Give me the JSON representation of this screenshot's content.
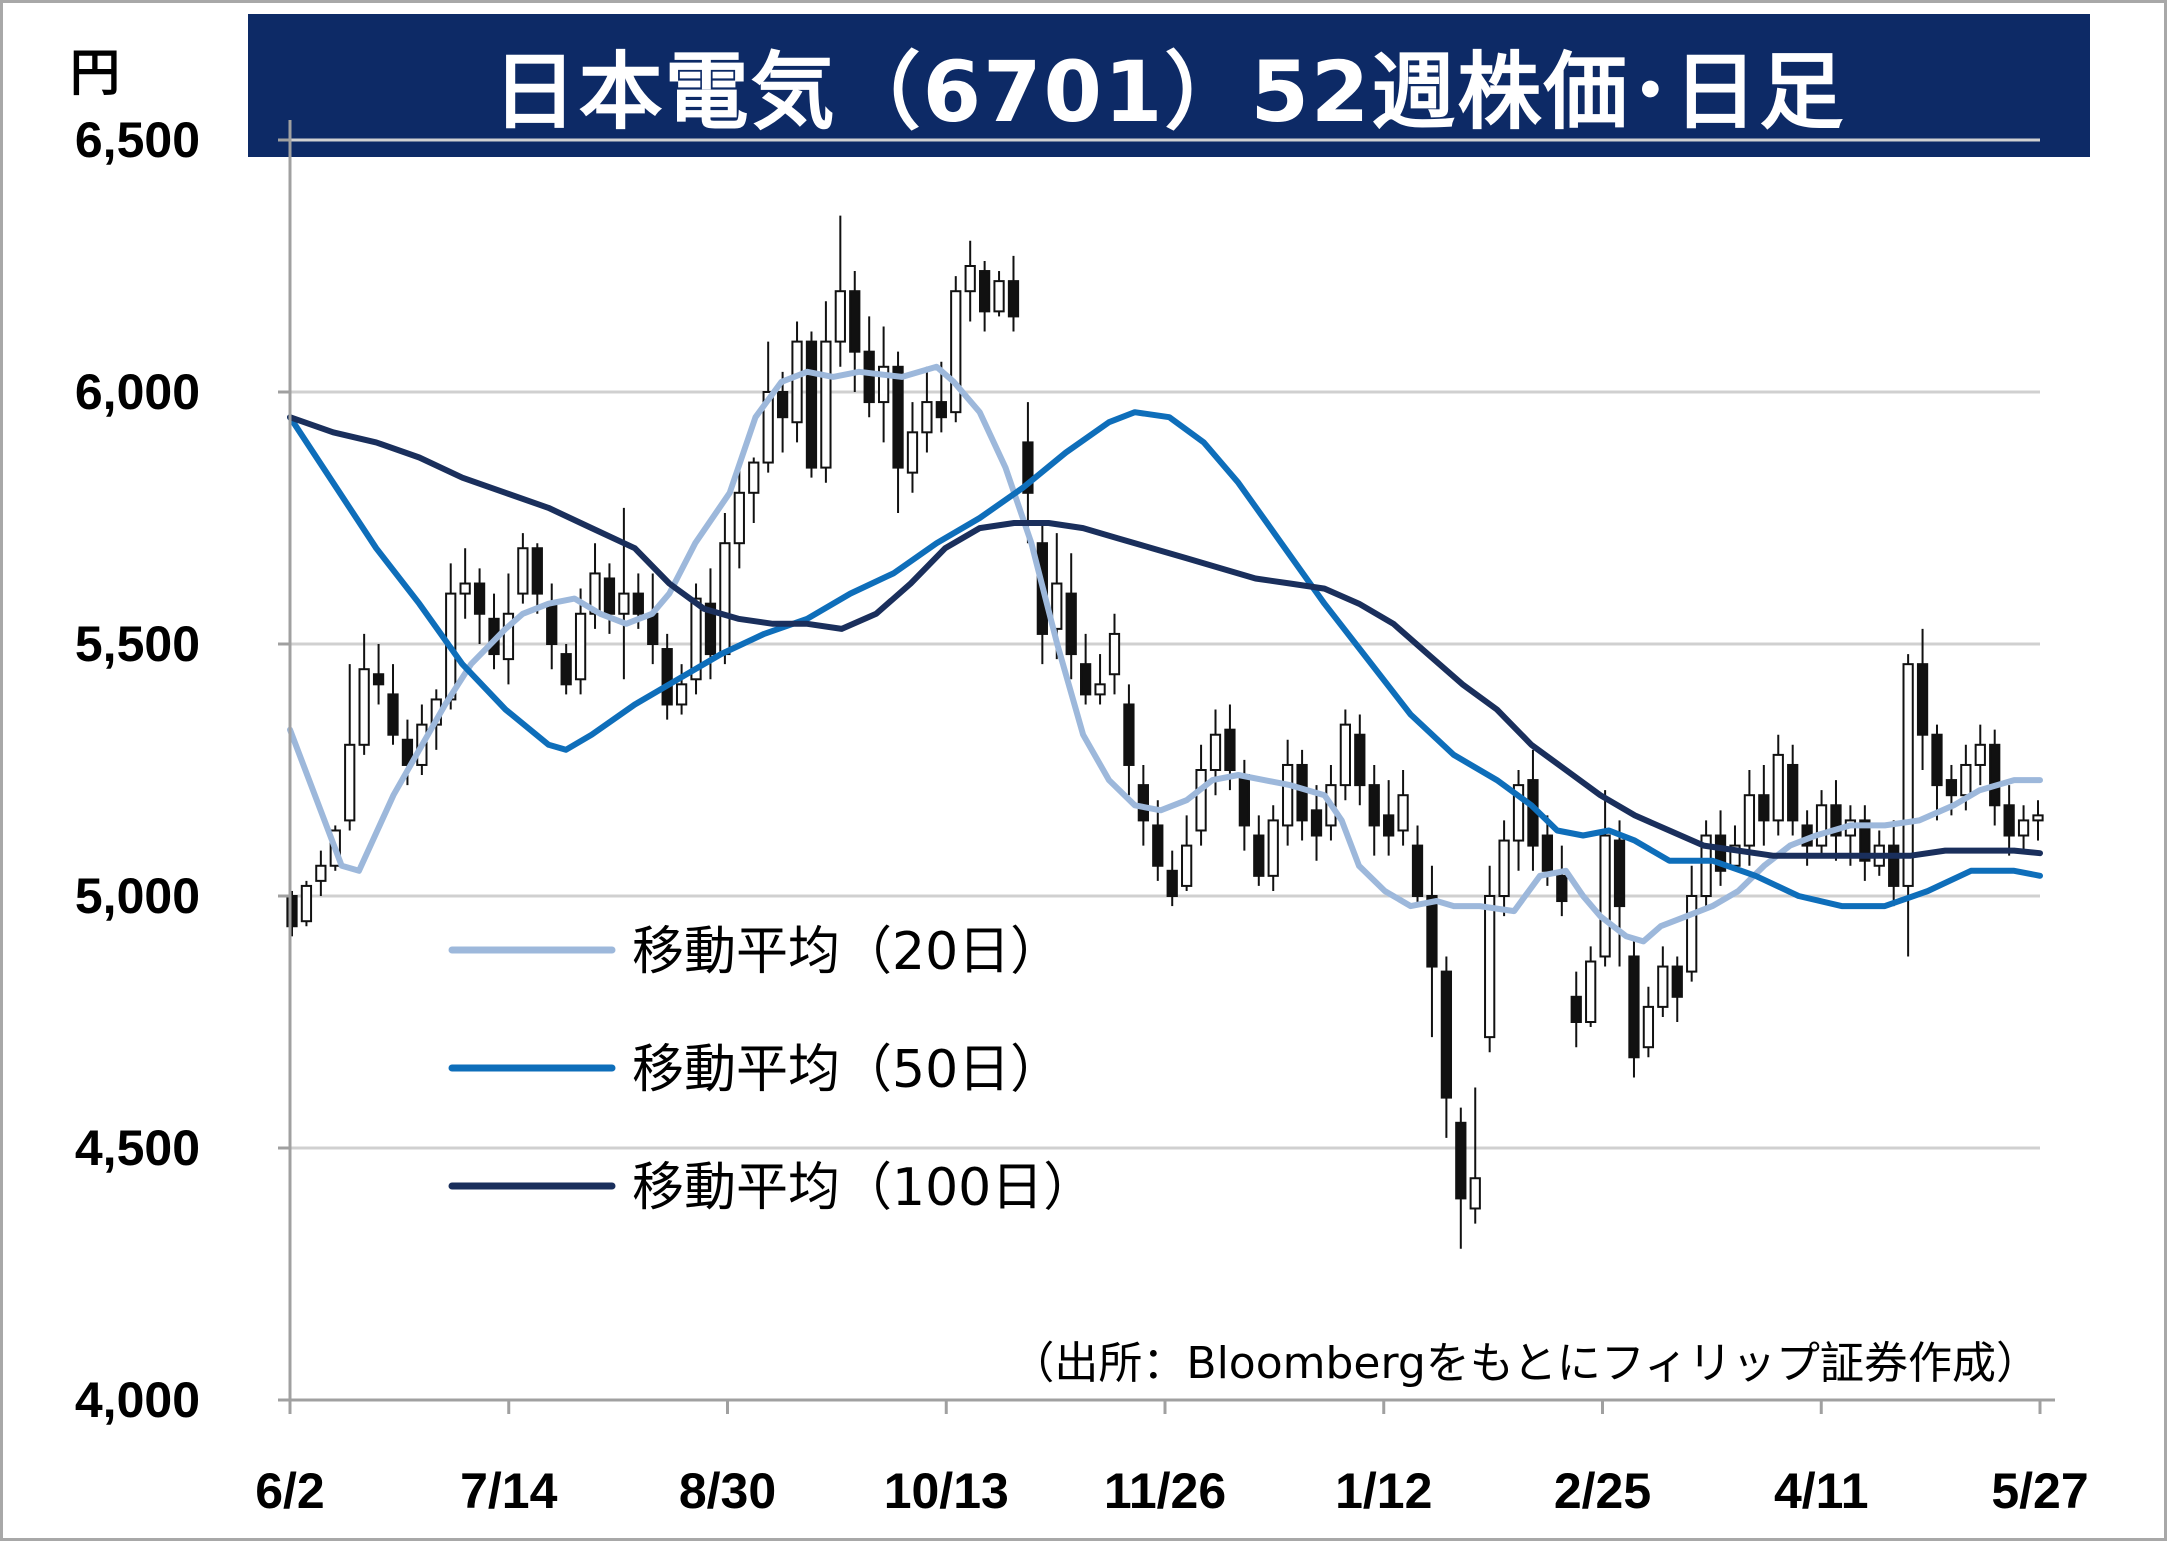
{
  "chart_data": {
    "type": "candlestick",
    "title": "日本電気（6701）52週株価･日足",
    "ylabel": "円",
    "ylim": [
      4000,
      6500
    ],
    "y_ticks": [
      "6,500",
      "6,000",
      "5,500",
      "5,000",
      "4,500",
      "4,000"
    ],
    "y_tick_values": [
      6500,
      6000,
      5500,
      5000,
      4500,
      4000
    ],
    "x_ticks": [
      "6/2",
      "7/14",
      "8/30",
      "10/13",
      "11/26",
      "1/12",
      "2/25",
      "4/11",
      "5/27"
    ],
    "grid": true,
    "source": "（出所：Bloombergをもとにフィリップ証券作成）",
    "legend_position": "center-left",
    "candles": [
      [
        5000,
        4940,
        5010,
        4920
      ],
      [
        4950,
        5020,
        5030,
        4940
      ],
      [
        5030,
        5060,
        5090,
        5000
      ],
      [
        5060,
        5130,
        5140,
        5050
      ],
      [
        5150,
        5300,
        5460,
        5130
      ],
      [
        5300,
        5450,
        5520,
        5280
      ],
      [
        5440,
        5420,
        5500,
        5380
      ],
      [
        5400,
        5320,
        5460,
        5300
      ],
      [
        5310,
        5260,
        5350,
        5220
      ],
      [
        5260,
        5340,
        5380,
        5240
      ],
      [
        5340,
        5390,
        5410,
        5290
      ],
      [
        5390,
        5600,
        5660,
        5370
      ],
      [
        5600,
        5620,
        5690,
        5550
      ],
      [
        5620,
        5560,
        5650,
        5500
      ],
      [
        5550,
        5480,
        5600,
        5450
      ],
      [
        5470,
        5560,
        5640,
        5420
      ],
      [
        5600,
        5690,
        5720,
        5580
      ],
      [
        5690,
        5600,
        5700,
        5560
      ],
      [
        5580,
        5500,
        5620,
        5450
      ],
      [
        5480,
        5420,
        5500,
        5400
      ],
      [
        5430,
        5560,
        5610,
        5400
      ],
      [
        5560,
        5640,
        5700,
        5530
      ],
      [
        5630,
        5560,
        5660,
        5520
      ],
      [
        5560,
        5600,
        5770,
        5430
      ],
      [
        5600,
        5560,
        5640,
        5530
      ],
      [
        5560,
        5500,
        5640,
        5460
      ],
      [
        5490,
        5380,
        5520,
        5350
      ],
      [
        5380,
        5420,
        5460,
        5360
      ],
      [
        5430,
        5590,
        5620,
        5400
      ],
      [
        5580,
        5480,
        5650,
        5430
      ],
      [
        5480,
        5700,
        5760,
        5460
      ],
      [
        5700,
        5800,
        5860,
        5650
      ],
      [
        5800,
        5860,
        5870,
        5740
      ],
      [
        5860,
        6000,
        6100,
        5840
      ],
      [
        6000,
        5950,
        6040,
        5880
      ],
      [
        5940,
        6100,
        6140,
        5900
      ],
      [
        6100,
        5850,
        6120,
        5830
      ],
      [
        5850,
        6100,
        6180,
        5820
      ],
      [
        6100,
        6200,
        6350,
        6050
      ],
      [
        6200,
        6080,
        6240,
        6000
      ],
      [
        6080,
        5980,
        6150,
        5950
      ],
      [
        5980,
        6050,
        6130,
        5900
      ],
      [
        6050,
        5850,
        6080,
        5760
      ],
      [
        5840,
        5920,
        5980,
        5800
      ],
      [
        5920,
        5980,
        6050,
        5880
      ],
      [
        5980,
        5950,
        6060,
        5920
      ],
      [
        5960,
        6200,
        6230,
        5940
      ],
      [
        6200,
        6250,
        6300,
        6140
      ],
      [
        6240,
        6160,
        6260,
        6120
      ],
      [
        6160,
        6220,
        6240,
        6150
      ],
      [
        6220,
        6150,
        6270,
        6120
      ],
      [
        5900,
        5800,
        5980,
        5700
      ],
      [
        5700,
        5520,
        5740,
        5460
      ],
      [
        5530,
        5620,
        5720,
        5470
      ],
      [
        5600,
        5480,
        5680,
        5430
      ],
      [
        5460,
        5400,
        5520,
        5380
      ],
      [
        5400,
        5420,
        5480,
        5380
      ],
      [
        5440,
        5520,
        5560,
        5400
      ],
      [
        5380,
        5260,
        5420,
        5200
      ],
      [
        5220,
        5150,
        5260,
        5100
      ],
      [
        5140,
        5060,
        5190,
        5030
      ],
      [
        5050,
        5000,
        5090,
        4980
      ],
      [
        5020,
        5100,
        5160,
        5010
      ],
      [
        5130,
        5250,
        5300,
        5100
      ],
      [
        5250,
        5320,
        5370,
        5200
      ],
      [
        5330,
        5250,
        5380,
        5210
      ],
      [
        5240,
        5140,
        5270,
        5090
      ],
      [
        5120,
        5040,
        5160,
        5020
      ],
      [
        5040,
        5150,
        5180,
        5010
      ],
      [
        5140,
        5260,
        5310,
        5100
      ],
      [
        5260,
        5150,
        5290,
        5110
      ],
      [
        5170,
        5120,
        5220,
        5070
      ],
      [
        5140,
        5220,
        5260,
        5110
      ],
      [
        5220,
        5340,
        5370,
        5190
      ],
      [
        5320,
        5220,
        5360,
        5180
      ],
      [
        5220,
        5140,
        5260,
        5080
      ],
      [
        5160,
        5120,
        5230,
        5080
      ],
      [
        5130,
        5200,
        5250,
        5100
      ],
      [
        5100,
        5000,
        5140,
        4980
      ],
      [
        5000,
        4860,
        5060,
        4720
      ],
      [
        4850,
        4600,
        4880,
        4520
      ],
      [
        4550,
        4400,
        4580,
        4300
      ],
      [
        4380,
        4440,
        4620,
        4350
      ],
      [
        4720,
        5000,
        5060,
        4690
      ],
      [
        5000,
        5110,
        5150,
        4960
      ],
      [
        5110,
        5220,
        5250,
        5050
      ],
      [
        5230,
        5100,
        5290,
        5050
      ],
      [
        5120,
        5050,
        5160,
        5020
      ],
      [
        5040,
        4990,
        5100,
        4960
      ],
      [
        4800,
        4750,
        4850,
        4700
      ],
      [
        4750,
        4870,
        4900,
        4740
      ],
      [
        4880,
        5120,
        5210,
        4860
      ],
      [
        5110,
        4980,
        5150,
        4860
      ],
      [
        4880,
        4680,
        4920,
        4640
      ],
      [
        4700,
        4780,
        4820,
        4680
      ],
      [
        4780,
        4860,
        4900,
        4760
      ],
      [
        4860,
        4800,
        4880,
        4750
      ],
      [
        4850,
        5000,
        5060,
        4830
      ],
      [
        5000,
        5120,
        5150,
        4980
      ],
      [
        5120,
        5050,
        5170,
        5020
      ],
      [
        5060,
        5100,
        5140,
        5050
      ],
      [
        5100,
        5200,
        5250,
        5060
      ],
      [
        5200,
        5150,
        5260,
        5100
      ],
      [
        5150,
        5280,
        5320,
        5120
      ],
      [
        5260,
        5150,
        5300,
        5120
      ],
      [
        5140,
        5100,
        5170,
        5060
      ],
      [
        5100,
        5180,
        5210,
        5080
      ],
      [
        5180,
        5120,
        5230,
        5070
      ],
      [
        5120,
        5150,
        5180,
        5060
      ],
      [
        5150,
        5070,
        5180,
        5030
      ],
      [
        5060,
        5100,
        5130,
        5040
      ],
      [
        5100,
        5020,
        5150,
        4980
      ],
      [
        5020,
        5460,
        5480,
        4880
      ],
      [
        5460,
        5320,
        5530,
        5250
      ],
      [
        5320,
        5220,
        5340,
        5150
      ],
      [
        5230,
        5200,
        5260,
        5160
      ],
      [
        5200,
        5260,
        5300,
        5170
      ],
      [
        5260,
        5300,
        5340,
        5220
      ],
      [
        5300,
        5180,
        5330,
        5140
      ],
      [
        5180,
        5120,
        5220,
        5080
      ],
      [
        5120,
        5150,
        5180,
        5090
      ],
      [
        5150,
        5160,
        5190,
        5110
      ]
    ],
    "series": [
      {
        "name": "移動平均（20日）",
        "color": "#9db8db",
        "points": [
          [
            0,
            5330
          ],
          [
            6,
            5060
          ],
          [
            8,
            5050
          ],
          [
            12,
            5200
          ],
          [
            15,
            5290
          ],
          [
            18,
            5380
          ],
          [
            21,
            5460
          ],
          [
            25,
            5530
          ],
          [
            27,
            5560
          ],
          [
            30,
            5580
          ],
          [
            33,
            5590
          ],
          [
            36,
            5560
          ],
          [
            39,
            5540
          ],
          [
            42,
            5560
          ],
          [
            44,
            5600
          ],
          [
            47,
            5700
          ],
          [
            51,
            5800
          ],
          [
            54,
            5950
          ],
          [
            57,
            6020
          ],
          [
            60,
            6040
          ],
          [
            63,
            6030
          ],
          [
            66,
            6040
          ],
          [
            71,
            6030
          ],
          [
            75,
            6050
          ],
          [
            77,
            6020
          ],
          [
            80,
            5960
          ],
          [
            83,
            5850
          ],
          [
            86,
            5700
          ],
          [
            89,
            5500
          ],
          [
            92,
            5320
          ],
          [
            95,
            5230
          ],
          [
            98,
            5180
          ],
          [
            101,
            5170
          ],
          [
            104,
            5190
          ],
          [
            107,
            5230
          ],
          [
            110,
            5240
          ],
          [
            113,
            5230
          ],
          [
            116,
            5220
          ],
          [
            120,
            5200
          ],
          [
            122,
            5150
          ],
          [
            124,
            5060
          ],
          [
            127,
            5010
          ],
          [
            130,
            4980
          ],
          [
            133,
            4990
          ],
          [
            135,
            4980
          ],
          [
            138,
            4980
          ],
          [
            142,
            4970
          ],
          [
            145,
            5040
          ],
          [
            148,
            5050
          ],
          [
            150,
            5000
          ],
          [
            152,
            4960
          ],
          [
            155,
            4920
          ],
          [
            157,
            4910
          ],
          [
            159,
            4940
          ],
          [
            162,
            4960
          ],
          [
            165,
            4980
          ],
          [
            168,
            5010
          ],
          [
            171,
            5060
          ],
          [
            174,
            5100
          ],
          [
            177,
            5120
          ],
          [
            181,
            5140
          ],
          [
            185,
            5140
          ],
          [
            189,
            5150
          ],
          [
            193,
            5180
          ],
          [
            196,
            5210
          ],
          [
            200,
            5230
          ],
          [
            203,
            5230
          ]
        ]
      },
      {
        "name": "移動平均（50日）",
        "color": "#0e6eba",
        "points": [
          [
            0,
            5950
          ],
          [
            5,
            5820
          ],
          [
            10,
            5690
          ],
          [
            15,
            5580
          ],
          [
            20,
            5460
          ],
          [
            25,
            5370
          ],
          [
            30,
            5300
          ],
          [
            32,
            5290
          ],
          [
            35,
            5320
          ],
          [
            40,
            5380
          ],
          [
            45,
            5430
          ],
          [
            50,
            5480
          ],
          [
            55,
            5520
          ],
          [
            60,
            5550
          ],
          [
            65,
            5600
          ],
          [
            70,
            5640
          ],
          [
            75,
            5700
          ],
          [
            80,
            5750
          ],
          [
            85,
            5810
          ],
          [
            90,
            5880
          ],
          [
            95,
            5940
          ],
          [
            98,
            5960
          ],
          [
            102,
            5950
          ],
          [
            106,
            5900
          ],
          [
            110,
            5820
          ],
          [
            115,
            5700
          ],
          [
            120,
            5580
          ],
          [
            125,
            5470
          ],
          [
            130,
            5360
          ],
          [
            135,
            5280
          ],
          [
            140,
            5230
          ],
          [
            144,
            5180
          ],
          [
            147,
            5130
          ],
          [
            150,
            5120
          ],
          [
            153,
            5130
          ],
          [
            156,
            5110
          ],
          [
            160,
            5070
          ],
          [
            165,
            5070
          ],
          [
            170,
            5040
          ],
          [
            175,
            5000
          ],
          [
            180,
            4980
          ],
          [
            185,
            4980
          ],
          [
            190,
            5010
          ],
          [
            195,
            5050
          ],
          [
            200,
            5050
          ],
          [
            203,
            5040
          ]
        ]
      },
      {
        "name": "移動平均（100日）",
        "color": "#1a2f5c",
        "points": [
          [
            0,
            5950
          ],
          [
            5,
            5920
          ],
          [
            10,
            5900
          ],
          [
            15,
            5870
          ],
          [
            20,
            5830
          ],
          [
            25,
            5800
          ],
          [
            30,
            5770
          ],
          [
            35,
            5730
          ],
          [
            40,
            5690
          ],
          [
            44,
            5620
          ],
          [
            48,
            5570
          ],
          [
            52,
            5550
          ],
          [
            56,
            5540
          ],
          [
            60,
            5540
          ],
          [
            64,
            5530
          ],
          [
            68,
            5560
          ],
          [
            72,
            5620
          ],
          [
            76,
            5690
          ],
          [
            80,
            5730
          ],
          [
            84,
            5740
          ],
          [
            88,
            5740
          ],
          [
            92,
            5730
          ],
          [
            96,
            5710
          ],
          [
            100,
            5690
          ],
          [
            104,
            5670
          ],
          [
            108,
            5650
          ],
          [
            112,
            5630
          ],
          [
            116,
            5620
          ],
          [
            120,
            5610
          ],
          [
            124,
            5580
          ],
          [
            128,
            5540
          ],
          [
            132,
            5480
          ],
          [
            136,
            5420
          ],
          [
            140,
            5370
          ],
          [
            144,
            5300
          ],
          [
            148,
            5250
          ],
          [
            152,
            5200
          ],
          [
            156,
            5160
          ],
          [
            160,
            5130
          ],
          [
            164,
            5100
          ],
          [
            168,
            5090
          ],
          [
            172,
            5080
          ],
          [
            176,
            5080
          ],
          [
            180,
            5080
          ],
          [
            184,
            5080
          ],
          [
            188,
            5080
          ],
          [
            192,
            5090
          ],
          [
            196,
            5090
          ],
          [
            200,
            5090
          ],
          [
            203,
            5085
          ]
        ]
      }
    ]
  }
}
